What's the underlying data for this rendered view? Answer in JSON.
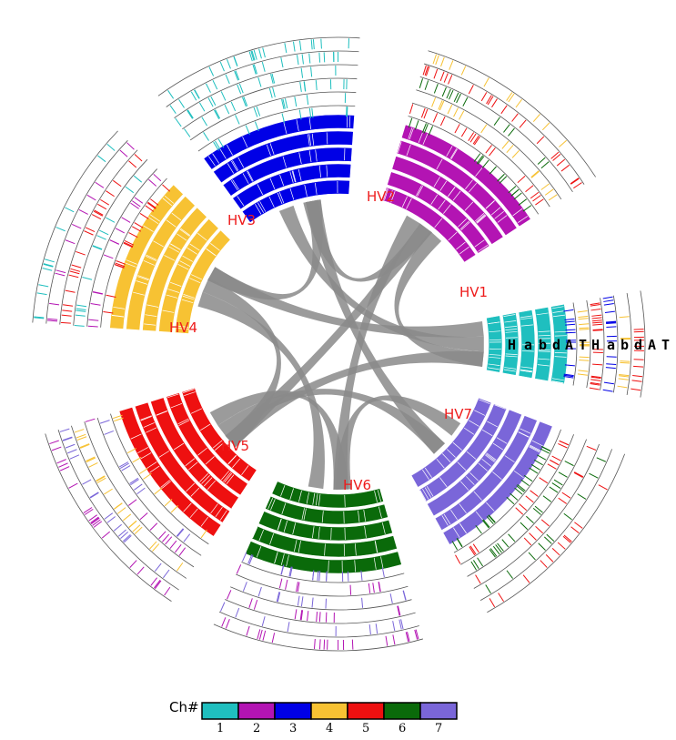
{
  "colors": {
    "chr1": "#1fbfbf",
    "chr2": "#b314b3",
    "chr3": "#0000e6",
    "chr4": "#f7c233",
    "chr5": "#ee1010",
    "chr6": "#0a6a0a",
    "chr7": "#7a66d9",
    "link": "#8a8a8a",
    "label": "#ee1c1c",
    "outline": "#555555"
  },
  "segments": [
    {
      "label": "HV1",
      "color": "chr1",
      "flank": [
        "chr3",
        "chr4",
        "chr5"
      ]
    },
    {
      "label": "HV2",
      "color": "chr2",
      "flank": [
        "chr6",
        "chr5",
        "chr4"
      ]
    },
    {
      "label": "HV3",
      "color": "chr3",
      "flank": [
        "chr1"
      ]
    },
    {
      "label": "HV4",
      "color": "chr4",
      "flank": [
        "chr5",
        "chr2",
        "chr1"
      ]
    },
    {
      "label": "HV5",
      "color": "chr5",
      "flank": [
        "chr4",
        "chr7",
        "chr2"
      ]
    },
    {
      "label": "HV6",
      "color": "chr6",
      "flank": [
        "chr7",
        "chr2"
      ]
    },
    {
      "label": "HV7",
      "color": "chr7",
      "flank": [
        "chr6",
        "chr5"
      ]
    }
  ],
  "track_labels": [
    "H",
    "a",
    "b",
    "d",
    "A",
    "T",
    "H",
    "a",
    "b",
    "d",
    "A",
    "T"
  ],
  "legend": {
    "title": "Ch#",
    "items": [
      {
        "num": "1",
        "color": "chr1"
      },
      {
        "num": "2",
        "color": "chr2"
      },
      {
        "num": "3",
        "color": "chr3"
      },
      {
        "num": "4",
        "color": "chr4"
      },
      {
        "num": "5",
        "color": "chr5"
      },
      {
        "num": "6",
        "color": "chr6"
      },
      {
        "num": "7",
        "color": "chr7"
      }
    ]
  },
  "links": [
    [
      "HV1",
      "HV2"
    ],
    [
      "HV1",
      "HV3"
    ],
    [
      "HV1",
      "HV4"
    ],
    [
      "HV1",
      "HV5"
    ],
    [
      "HV2",
      "HV3"
    ],
    [
      "HV2",
      "HV6"
    ],
    [
      "HV3",
      "HV4"
    ],
    [
      "HV4",
      "HV5"
    ],
    [
      "HV4",
      "HV6"
    ],
    [
      "HV5",
      "HV6"
    ],
    [
      "HV5",
      "HV7"
    ],
    [
      "HV6",
      "HV7"
    ],
    [
      "HV3",
      "HV7"
    ],
    [
      "HV2",
      "HV5"
    ]
  ]
}
